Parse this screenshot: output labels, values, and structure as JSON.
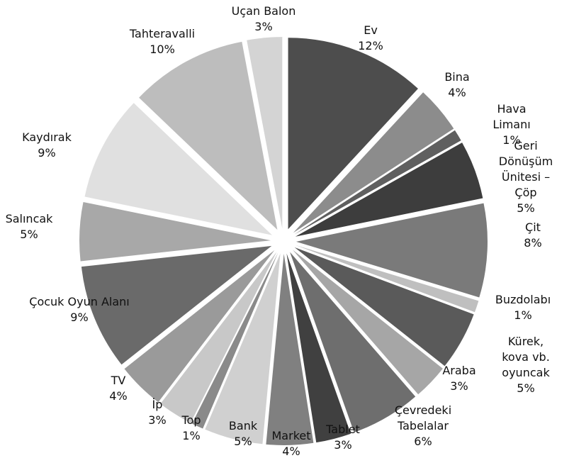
{
  "chart_data": {
    "type": "pie",
    "categories": [
      "Ev",
      "Bina",
      "Hava Limanı",
      "Geri Dönüşüm\nÜnitesi – Çöp",
      "Çit",
      "Buzdolabı",
      "Kürek, kova vb.\noyuncak",
      "Araba",
      "Çevredeki\nTabelalar",
      "Tablet",
      "Market",
      "Bank",
      "Top",
      "İp",
      "TV",
      "Çocuk Oyun Alanı",
      "Salıncak",
      "Kaydırak",
      "Tahteravalli",
      "Uçan Balon"
    ],
    "values": [
      12,
      4,
      1,
      5,
      8,
      1,
      5,
      3,
      6,
      3,
      4,
      5,
      1,
      3,
      4,
      9,
      5,
      9,
      10,
      3
    ],
    "value_labels": [
      "12%",
      "4%",
      "1%",
      "5%",
      "8%",
      "1%",
      "5%",
      "3%",
      "6%",
      "3%",
      "4%",
      "5%",
      "1%",
      "3%",
      "4%",
      "9%",
      "5%",
      "9%",
      "10%",
      "3%"
    ],
    "colors": [
      "#4d4d4d",
      "#8c8c8c",
      "#5f5f5f",
      "#3d3d3d",
      "#7a7a7a",
      "#bfbfbf",
      "#5a5a5a",
      "#a6a6a6",
      "#6e6e6e",
      "#404040",
      "#808080",
      "#d0d0d0",
      "#8a8a8a",
      "#c8c8c8",
      "#9a9a9a",
      "#6a6a6a",
      "#a8a8a8",
      "#e0e0e0",
      "#bdbdbd",
      "#d4d4d4"
    ]
  }
}
